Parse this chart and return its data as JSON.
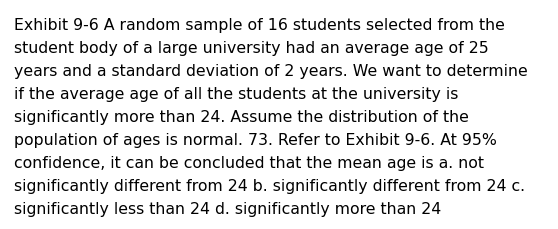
{
  "background_color": "#ffffff",
  "text_color": "#000000",
  "lines": [
    "Exhibit 9-6 A random sample of 16 students selected from the",
    "student body of a large university had an average age of 25",
    "years and a standard deviation of 2 years. We want to determine",
    "if the average age of all the students at the university is",
    "significantly more than 24. Assume the distribution of the",
    "population of ages is normal. 73. Refer to Exhibit 9-6. At 95%",
    "confidence, it can be concluded that the mean age is a. not",
    "significantly different from 24 b. significantly different from 24 c.",
    "significantly less than 24 d. significantly more than 24"
  ],
  "font_size": 11.3,
  "font_family": "DejaVu Sans",
  "fig_width": 5.58,
  "fig_height": 2.3,
  "dpi": 100
}
